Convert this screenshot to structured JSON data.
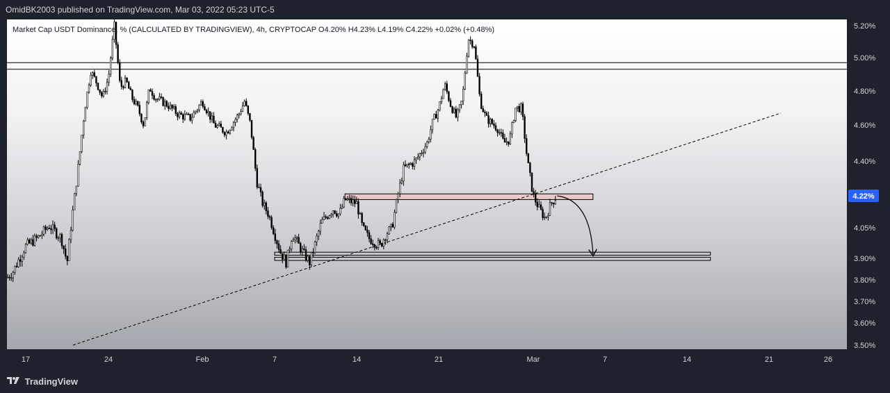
{
  "header": {
    "published_line": "OmidBK2003 published on TradingView.com, Mar 03, 2022 05:23 UTC-5"
  },
  "legend": {
    "text": "Market Cap USDT Dominance, % (CALCULATED BY TRADINGVIEW), 4h, CRYPTOCAP  O4.20%  H4.23%  L4.19%  C4.22%  +0.02% (+0.48%)"
  },
  "footer": {
    "brand": "TradingView"
  },
  "chart_data": {
    "type": "candlestick",
    "symbol": "Market Cap USDT Dominance",
    "interval": "4h",
    "exchange": "CRYPTOCAP",
    "ohlc": {
      "open": 4.2,
      "high": 4.23,
      "low": 4.19,
      "close": 4.22,
      "change": 0.02,
      "change_pct": 0.48
    },
    "price_axis_labels": [
      "5.20%",
      "5.00%",
      "4.80%",
      "4.60%",
      "4.40%",
      "4.05%",
      "3.90%",
      "3.80%",
      "3.70%",
      "3.60%",
      "3.50%"
    ],
    "price_ticks": [
      5.2,
      5.0,
      4.8,
      4.6,
      4.4,
      4.05,
      3.9,
      3.8,
      3.7,
      3.6,
      3.5
    ],
    "price_range": [
      3.5,
      5.22
    ],
    "time_axis_labels": [
      "17",
      "24",
      "Feb",
      "7",
      "14",
      "21",
      "Mar",
      "7",
      "14",
      "21",
      "26"
    ],
    "time_axis_dates": [
      "2022-01-17",
      "2022-01-24",
      "2022-02-01",
      "2022-02-07",
      "2022-02-14",
      "2022-02-21",
      "2022-03-01",
      "2022-03-07",
      "2022-03-14",
      "2022-03-21",
      "2022-03-26"
    ],
    "last_price_label": "4.22%",
    "last_price": 4.22,
    "close_path": [
      [
        "2022-01-14",
        3.81
      ],
      [
        "2022-01-15",
        3.84
      ],
      [
        "2022-01-16",
        3.9
      ],
      [
        "2022-01-17",
        3.96
      ],
      [
        "2022-01-18",
        4.0
      ],
      [
        "2022-01-19",
        4.06
      ],
      [
        "2022-01-20",
        4.0
      ],
      [
        "2022-01-20T12:00",
        3.88
      ],
      [
        "2022-01-21",
        4.15
      ],
      [
        "2022-01-21T12:00",
        4.4
      ],
      [
        "2022-01-22",
        4.7
      ],
      [
        "2022-01-22T12:00",
        4.92
      ],
      [
        "2022-01-23",
        4.85
      ],
      [
        "2022-01-23T12:00",
        4.76
      ],
      [
        "2022-01-24",
        4.88
      ],
      [
        "2022-01-24T12:00",
        5.2
      ],
      [
        "2022-01-25",
        4.82
      ],
      [
        "2022-01-25T12:00",
        4.86
      ],
      [
        "2022-01-26",
        4.76
      ],
      [
        "2022-01-26T12:00",
        4.7
      ],
      [
        "2022-01-27",
        4.6
      ],
      [
        "2022-01-27T12:00",
        4.82
      ],
      [
        "2022-01-28",
        4.76
      ],
      [
        "2022-01-29",
        4.72
      ],
      [
        "2022-01-30",
        4.66
      ],
      [
        "2022-01-31",
        4.64
      ],
      [
        "2022-02-01",
        4.74
      ],
      [
        "2022-02-02",
        4.6
      ],
      [
        "2022-02-03",
        4.56
      ],
      [
        "2022-02-04",
        4.66
      ],
      [
        "2022-02-04T12:00",
        4.74
      ],
      [
        "2022-02-05",
        4.6
      ],
      [
        "2022-02-05T12:00",
        4.3
      ],
      [
        "2022-02-06",
        4.18
      ],
      [
        "2022-02-06T12:00",
        4.12
      ],
      [
        "2022-02-07",
        4.02
      ],
      [
        "2022-02-07T12:00",
        3.93
      ],
      [
        "2022-02-08",
        3.88
      ],
      [
        "2022-02-08T12:00",
        4.02
      ],
      [
        "2022-02-09",
        3.97
      ],
      [
        "2022-02-09T12:00",
        3.92
      ],
      [
        "2022-02-10",
        3.88
      ],
      [
        "2022-02-10T12:00",
        3.98
      ],
      [
        "2022-02-11",
        4.08
      ],
      [
        "2022-02-12",
        4.15
      ],
      [
        "2022-02-12T12:00",
        4.12
      ],
      [
        "2022-02-13",
        4.2
      ],
      [
        "2022-02-14",
        4.18
      ],
      [
        "2022-02-14T12:00",
        4.05
      ],
      [
        "2022-02-15",
        4.0
      ],
      [
        "2022-02-16",
        3.96
      ],
      [
        "2022-02-16T12:00",
        4.02
      ],
      [
        "2022-02-17",
        4.05
      ],
      [
        "2022-02-17T12:00",
        4.22
      ],
      [
        "2022-02-18",
        4.36
      ],
      [
        "2022-02-19",
        4.4
      ],
      [
        "2022-02-20",
        4.5
      ],
      [
        "2022-02-20T12:00",
        4.62
      ],
      [
        "2022-02-21",
        4.7
      ],
      [
        "2022-02-21T12:00",
        4.84
      ],
      [
        "2022-02-22",
        4.72
      ],
      [
        "2022-02-22T12:00",
        4.64
      ],
      [
        "2022-02-23",
        4.75
      ],
      [
        "2022-02-23T12:00",
        5.12
      ],
      [
        "2022-02-24",
        5.08
      ],
      [
        "2022-02-24T12:00",
        4.74
      ],
      [
        "2022-02-25",
        4.64
      ],
      [
        "2022-02-26",
        4.58
      ],
      [
        "2022-02-26T12:00",
        4.5
      ],
      [
        "2022-02-27",
        4.52
      ],
      [
        "2022-02-27T12:00",
        4.7
      ],
      [
        "2022-02-28",
        4.7
      ],
      [
        "2022-02-28T12:00",
        4.4
      ],
      [
        "2022-03-01",
        4.22
      ],
      [
        "2022-03-01T12:00",
        4.15
      ],
      [
        "2022-03-02",
        4.1
      ],
      [
        "2022-03-02T12:00",
        4.18
      ],
      [
        "2022-03-03",
        4.22
      ]
    ],
    "horizontal_levels": [
      {
        "id": "resistance-top-line",
        "price": 4.97,
        "from": "2022-01-14",
        "to": "extended"
      },
      {
        "id": "resistance-bottom-line",
        "price": 4.93,
        "from": "2022-01-14",
        "to": "extended"
      }
    ],
    "zones": [
      {
        "id": "zone-4.22",
        "price_high": 4.23,
        "price_low": 4.2,
        "from": "2022-02-13",
        "to": "2022-03-06",
        "color": "#e8c8c8"
      },
      {
        "id": "support-zone-upper",
        "price_high": 3.93,
        "price_low": 3.915,
        "from": "2022-02-07",
        "to": "2022-03-16"
      },
      {
        "id": "support-zone-lower",
        "price_high": 3.905,
        "price_low": 3.89,
        "from": "2022-02-07",
        "to": "2022-03-16"
      }
    ],
    "trendline": {
      "style": "dashed",
      "from": [
        "2022-01-21",
        3.5
      ],
      "to": [
        "2022-03-22",
        4.67
      ]
    },
    "projection_arrow": {
      "from": [
        "2022-03-03",
        4.22
      ],
      "to": [
        "2022-03-06",
        3.92
      ]
    },
    "colors": {
      "candle": "#000000",
      "zone_fill": "#e8c8c8",
      "last_price_badge": "#2962ff",
      "background_top": "#ffffff",
      "background_bottom": "#a4a6ad"
    }
  }
}
